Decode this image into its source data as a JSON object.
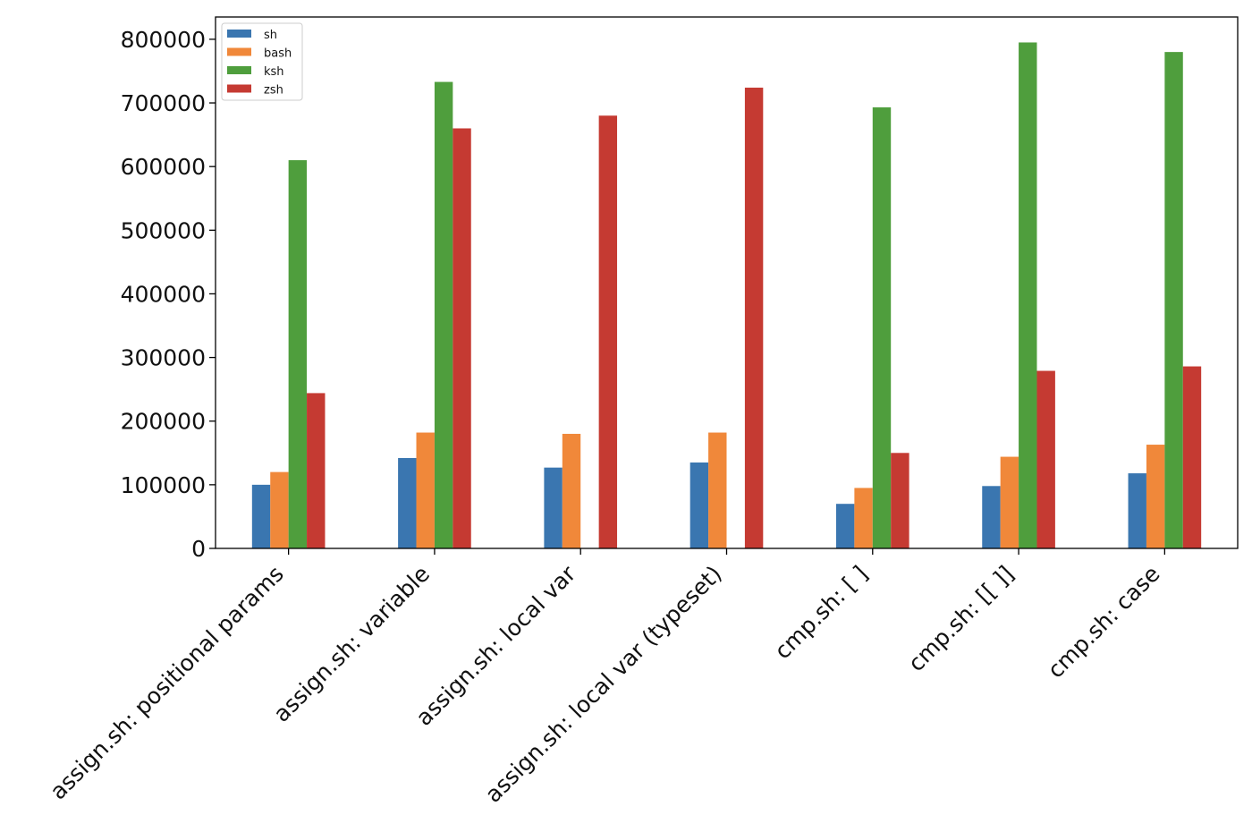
{
  "chart_data": {
    "type": "bar",
    "categories": [
      "assign.sh: positional params",
      "assign.sh: variable",
      "assign.sh: local var",
      "assign.sh: local var (typeset)",
      "cmp.sh: [ ]",
      "cmp.sh: [[ ]]",
      "cmp.sh: case"
    ],
    "series": [
      {
        "name": "sh",
        "color": "#3a76b0",
        "values": [
          100000,
          142000,
          127000,
          135000,
          70000,
          98000,
          118000
        ]
      },
      {
        "name": "bash",
        "color": "#f0883a",
        "values": [
          120000,
          182000,
          180000,
          182000,
          95000,
          144000,
          163000
        ]
      },
      {
        "name": "ksh",
        "color": "#4f9e3d",
        "values": [
          610000,
          733000,
          0,
          0,
          693000,
          795000,
          780000
        ]
      },
      {
        "name": "zsh",
        "color": "#c53a32",
        "values": [
          244000,
          660000,
          680000,
          724000,
          150000,
          279000,
          286000
        ]
      }
    ],
    "yticks": [
      "0",
      "100000",
      "200000",
      "300000",
      "400000",
      "500000",
      "600000",
      "700000",
      "800000"
    ],
    "ylim": [
      0,
      835000
    ],
    "title": "",
    "xlabel": "",
    "ylabel": "",
    "grid": false,
    "legend_position": "top-left"
  }
}
